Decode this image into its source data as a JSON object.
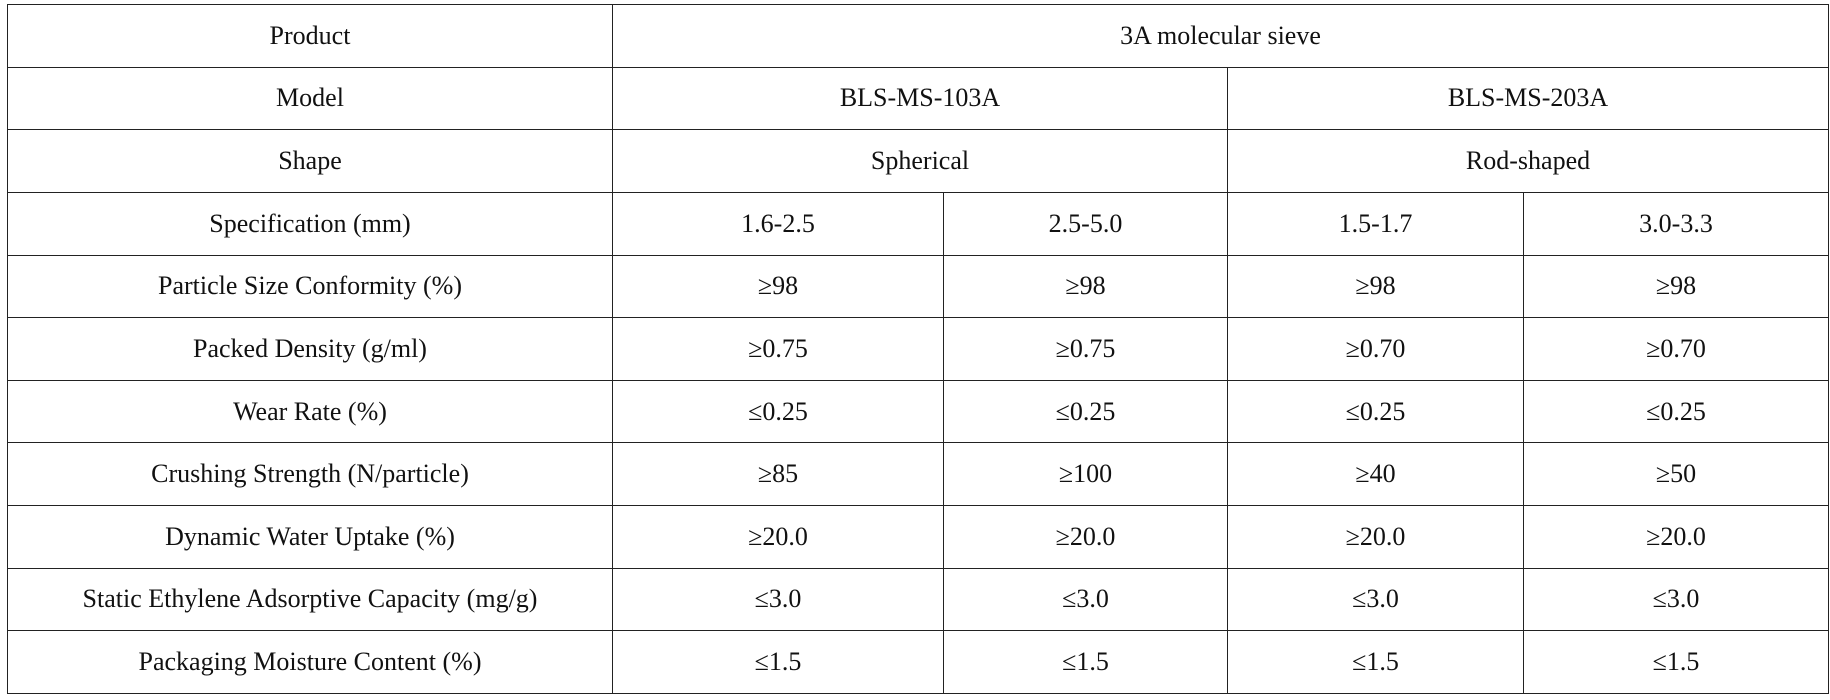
{
  "table": {
    "rows": [
      [
        "Product",
        "3A molecular sieve"
      ],
      [
        "Model",
        "BLS-MS-103A",
        "BLS-MS-203A"
      ],
      [
        "Shape",
        "Spherical",
        "Rod-shaped"
      ],
      [
        "Specification (mm)",
        "1.6-2.5",
        "2.5-5.0",
        "1.5-1.7",
        "3.0-3.3"
      ],
      [
        "Particle Size Conformity (%)",
        "≥98",
        "≥98",
        "≥98",
        "≥98"
      ],
      [
        "Packed Density (g/ml)",
        "≥0.75",
        "≥0.75",
        "≥0.70",
        "≥0.70"
      ],
      [
        "Wear Rate (%)",
        "≤0.25",
        "≤0.25",
        "≤0.25",
        "≤0.25"
      ],
      [
        "Crushing Strength (N/particle)",
        "≥85",
        "≥100",
        "≥40",
        "≥50"
      ],
      [
        "Dynamic Water Uptake (%)",
        "≥20.0",
        "≥20.0",
        "≥20.0",
        "≥20.0"
      ],
      [
        "Static Ethylene Adsorptive Capacity (mg/g)",
        "≤3.0",
        "≤3.0",
        "≤3.0",
        "≤3.0"
      ],
      [
        "Packaging Moisture Content (%)",
        "≤1.5",
        "≤1.5",
        "≤1.5",
        "≤1.5"
      ]
    ]
  }
}
